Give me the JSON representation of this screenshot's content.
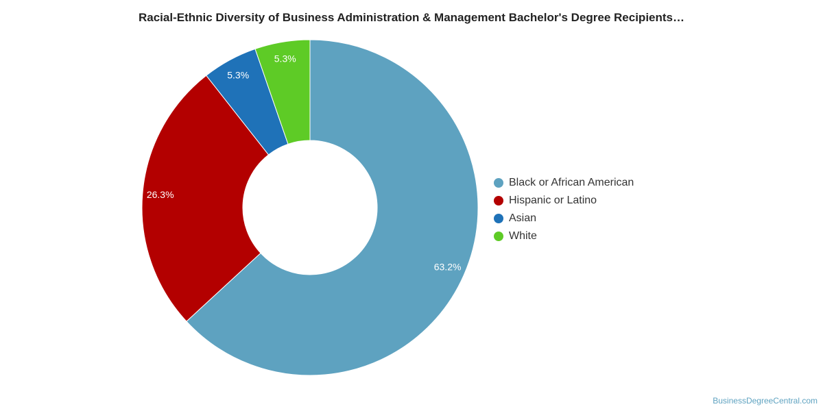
{
  "chart_data": {
    "type": "pie",
    "title": "Racial-Ethnic Diversity of Business Administration & Management Bachelor's Degree Recipients…",
    "categories": [
      "Black or African American",
      "Hispanic or Latino",
      "Asian",
      "White"
    ],
    "values": [
      63.2,
      26.3,
      5.3,
      5.3
    ],
    "labels": [
      "63.2%",
      "26.3%",
      "5.3%",
      "5.3%"
    ],
    "colors": [
      "#5ea2c0",
      "#b30000",
      "#1f72b8",
      "#5ecb26"
    ],
    "legend_position": "right"
  },
  "source_text": "BusinessDegreeCentral.com"
}
